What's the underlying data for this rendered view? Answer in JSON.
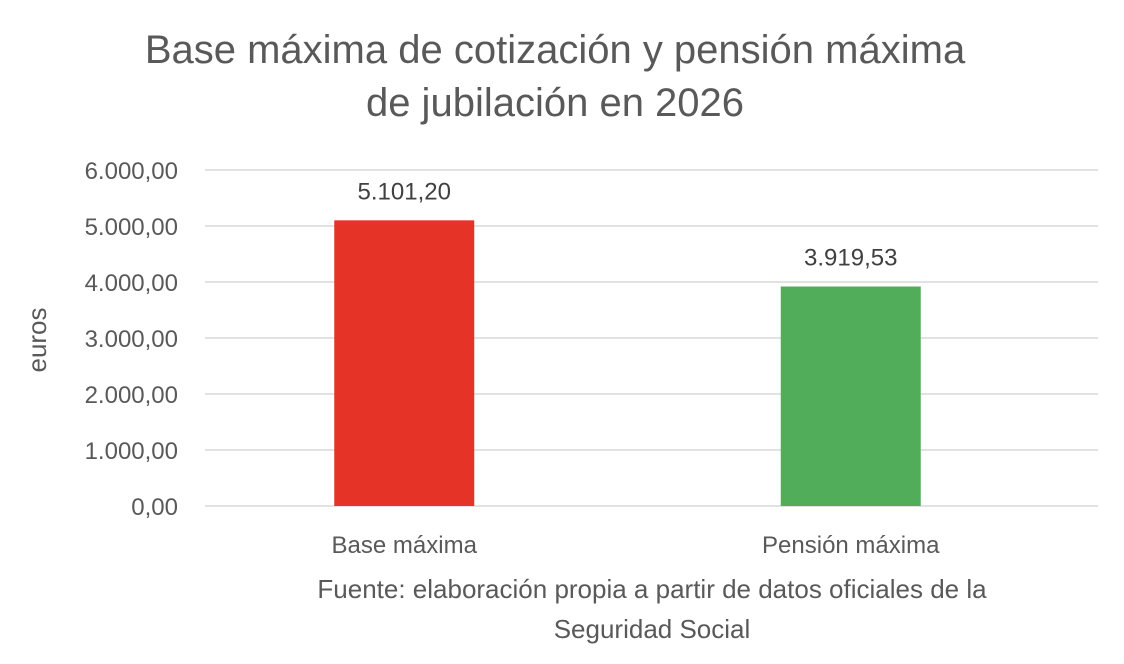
{
  "chart_data": {
    "type": "bar",
    "title_lines": [
      "Base máxima de cotización y pensión máxima",
      "de jubilación en 2026"
    ],
    "categories": [
      "Base máxima",
      "Pensión máxima"
    ],
    "values": [
      5101.2,
      3919.53
    ],
    "data_labels": [
      "5.101,20",
      "3.919,53"
    ],
    "colors": [
      "#E63327",
      "#52AD5B"
    ],
    "ylabel": "euros",
    "xlabel": "",
    "ylim": [
      0,
      6000
    ],
    "yticks": [
      0,
      1000,
      2000,
      3000,
      4000,
      5000,
      6000
    ],
    "ytick_labels": [
      "0,00",
      "1.000,00",
      "2.000,00",
      "3.000,00",
      "4.000,00",
      "5.000,00",
      "6.000,00"
    ],
    "grid": true,
    "legend": "none",
    "source_lines": [
      "Fuente: elaboración propia a partir de datos oficiales de la",
      "Seguridad Social"
    ]
  }
}
